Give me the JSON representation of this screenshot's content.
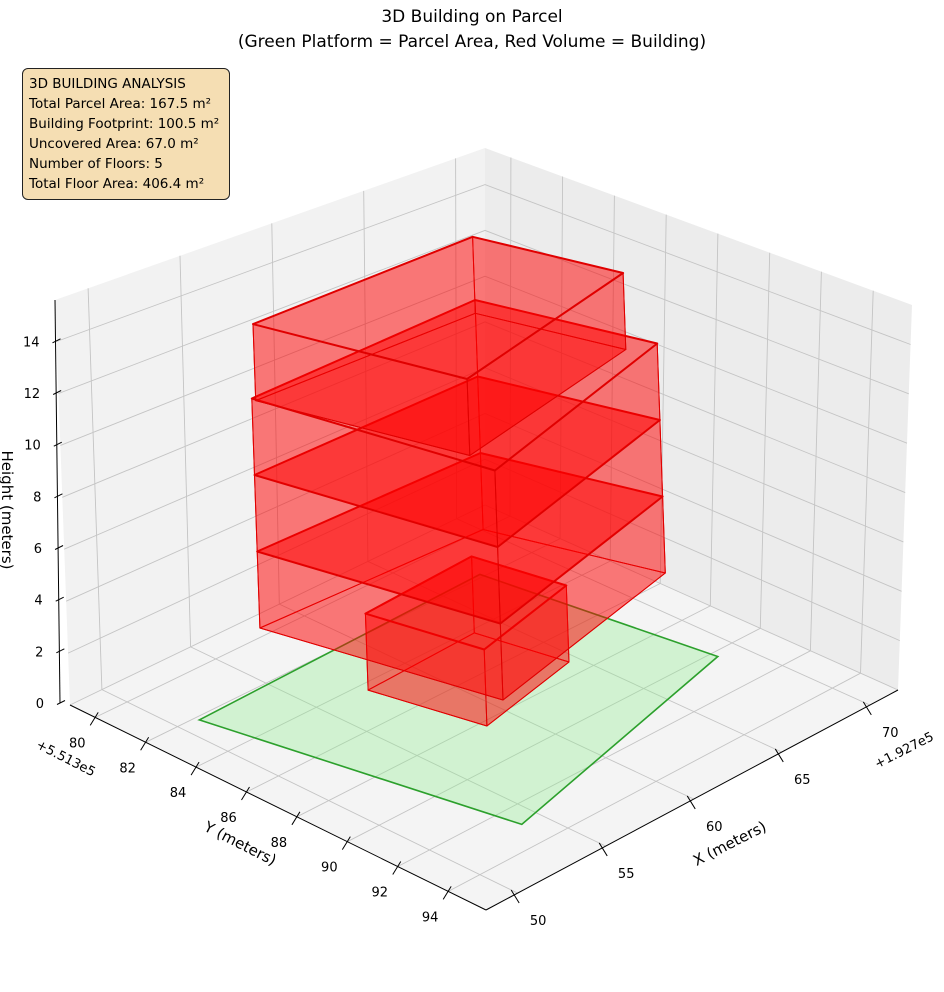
{
  "chart_data": {
    "type": "3d-volume",
    "title": "3D Building on Parcel",
    "subtitle": "(Green Platform = Parcel Area, Red Volume = Building)",
    "xlabel": "X (meters)",
    "ylabel": "Y (meters)",
    "zlabel": "Height (meters)",
    "x_offset_label": "+1.927e5",
    "y_offset_label": "+5.513e5",
    "xlim": [
      48.4,
      71.8
    ],
    "ylim": [
      79.0,
      95.5
    ],
    "zlim": [
      0,
      15.6
    ],
    "xticks": [
      50,
      55,
      60,
      65,
      70
    ],
    "yticks": [
      80,
      82,
      84,
      86,
      88,
      90,
      92,
      94
    ],
    "zticks": [
      0,
      2,
      4,
      6,
      8,
      10,
      12,
      14
    ],
    "grid": true,
    "colors": {
      "parcel_fill": "#90ee90",
      "parcel_edge": "#2ca02c",
      "building_fill": "#ff0000",
      "building_edge": "#e00000",
      "info_box": "#f5deb3"
    },
    "parcel": {
      "label": "Parcel Area",
      "polygon": [
        [
          68.7,
          81.65
        ],
        [
          65.6,
          92.1
        ],
        [
          50.5,
          89.5
        ],
        [
          52.5,
          81.6
        ]
      ]
    },
    "floors": [
      {
        "floor": 1,
        "z": [
          0,
          3
        ],
        "footprint": [
          [
            62.25,
            83.85
          ],
          [
            60.96,
            87.6
          ],
          [
            55.0,
            86.76
          ],
          [
            56.0,
            83.75
          ]
        ]
      },
      {
        "floor": 2,
        "z": [
          3,
          6
        ],
        "footprint": [
          [
            66.04,
            82.31
          ],
          [
            63.32,
            89.93
          ],
          [
            51.5,
            88.24
          ],
          [
            54.14,
            82.94
          ]
        ]
      },
      {
        "floor": 3,
        "z": [
          6,
          9
        ],
        "footprint": [
          [
            66.04,
            82.31
          ],
          [
            63.32,
            89.93
          ],
          [
            51.5,
            88.24
          ],
          [
            54.14,
            82.94
          ]
        ]
      },
      {
        "floor": 4,
        "z": [
          9,
          12
        ],
        "footprint": [
          [
            66.04,
            82.31
          ],
          [
            63.32,
            89.93
          ],
          [
            51.5,
            88.24
          ],
          [
            54.14,
            82.94
          ]
        ]
      },
      {
        "floor": 5,
        "z": [
          12,
          15
        ],
        "footprint": [
          [
            66.05,
            82.47
          ],
          [
            63.17,
            88.85
          ],
          [
            52.73,
            87.85
          ],
          [
            54.89,
            83.46
          ]
        ]
      }
    ],
    "info_box": {
      "lines": [
        "3D BUILDING ANALYSIS",
        "Total Parcel Area: 167.5 m²",
        "Building Footprint: 100.5 m²",
        "Uncovered Area: 67.0 m²",
        "Number of Floors: 5",
        "Total Floor Area: 406.4 m²"
      ]
    }
  }
}
